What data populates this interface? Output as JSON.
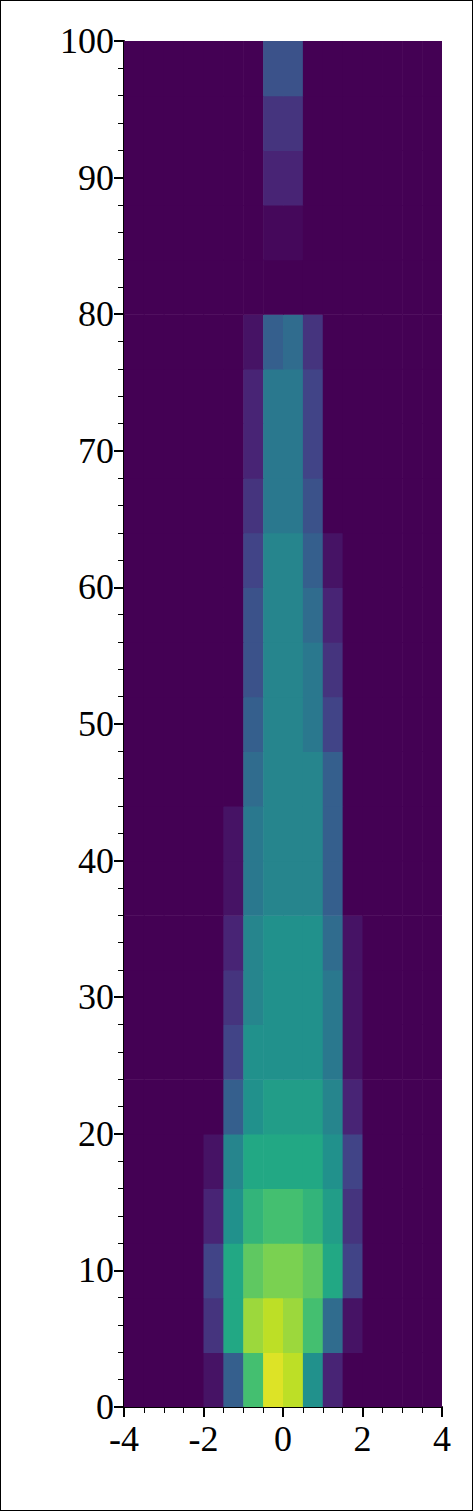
{
  "chart_data": {
    "type": "heatmap",
    "xlim": [
      -4,
      4
    ],
    "xticks": [
      -4,
      -2,
      0,
      2,
      4
    ],
    "ylim": [
      0,
      100
    ],
    "yticks": [
      0,
      10,
      20,
      30,
      40,
      50,
      60,
      70,
      80,
      90,
      100
    ],
    "grid": false,
    "zlim": [
      0,
      1
    ],
    "cells": {
      "x": [
        -3.75,
        -3.25,
        -2.75,
        -2.25,
        -1.75,
        -1.25,
        -0.75,
        -0.25,
        0.25,
        0.75,
        1.25,
        1.75,
        2.25,
        2.75,
        3.25,
        3.75
      ],
      "y": [
        2,
        6,
        10,
        14,
        18,
        22,
        26,
        30,
        34,
        38,
        42,
        46,
        50,
        54,
        58,
        62,
        66,
        70,
        74,
        78,
        82,
        86,
        90,
        94,
        98
      ],
      "values": [
        [
          0,
          0,
          0,
          0,
          0.05,
          0.3,
          0.7,
          0.95,
          0.9,
          0.5,
          0.1,
          0,
          0,
          0,
          0,
          0
        ],
        [
          0,
          0,
          0,
          0,
          0.15,
          0.6,
          0.85,
          0.9,
          0.85,
          0.7,
          0.35,
          0.05,
          0,
          0,
          0,
          0
        ],
        [
          0,
          0,
          0,
          0,
          0.2,
          0.6,
          0.75,
          0.8,
          0.8,
          0.75,
          0.6,
          0.2,
          0,
          0,
          0,
          0
        ],
        [
          0,
          0,
          0,
          0,
          0.1,
          0.5,
          0.65,
          0.7,
          0.7,
          0.65,
          0.55,
          0.15,
          0,
          0,
          0,
          0
        ],
        [
          0,
          0,
          0,
          0,
          0.05,
          0.45,
          0.6,
          0.6,
          0.6,
          0.6,
          0.5,
          0.2,
          0,
          0,
          0,
          0
        ],
        [
          0,
          0,
          0,
          0,
          0,
          0.3,
          0.5,
          0.55,
          0.55,
          0.55,
          0.45,
          0.1,
          0,
          0,
          0,
          0
        ],
        [
          0,
          0,
          0,
          0,
          0,
          0.2,
          0.5,
          0.5,
          0.5,
          0.5,
          0.4,
          0.05,
          0,
          0,
          0,
          0
        ],
        [
          0,
          0,
          0,
          0,
          0,
          0.15,
          0.45,
          0.5,
          0.5,
          0.5,
          0.4,
          0.05,
          0,
          0,
          0,
          0
        ],
        [
          0,
          0,
          0,
          0,
          0,
          0.1,
          0.45,
          0.5,
          0.5,
          0.5,
          0.35,
          0.05,
          0,
          0,
          0,
          0
        ],
        [
          0,
          0,
          0,
          0,
          0,
          0.05,
          0.4,
          0.45,
          0.45,
          0.45,
          0.3,
          0,
          0,
          0,
          0,
          0
        ],
        [
          0,
          0,
          0,
          0,
          0,
          0.05,
          0.4,
          0.45,
          0.45,
          0.45,
          0.3,
          0,
          0,
          0,
          0,
          0
        ],
        [
          0,
          0,
          0,
          0,
          0,
          0,
          0.35,
          0.45,
          0.45,
          0.45,
          0.3,
          0,
          0,
          0,
          0,
          0
        ],
        [
          0,
          0,
          0,
          0,
          0,
          0,
          0.3,
          0.45,
          0.45,
          0.4,
          0.2,
          0,
          0,
          0,
          0,
          0
        ],
        [
          0,
          0,
          0,
          0,
          0,
          0,
          0.25,
          0.45,
          0.45,
          0.4,
          0.15,
          0,
          0,
          0,
          0,
          0
        ],
        [
          0,
          0,
          0,
          0,
          0,
          0,
          0.25,
          0.45,
          0.45,
          0.35,
          0.1,
          0,
          0,
          0,
          0,
          0
        ],
        [
          0,
          0,
          0,
          0,
          0,
          0,
          0.2,
          0.45,
          0.45,
          0.3,
          0.05,
          0,
          0,
          0,
          0,
          0
        ],
        [
          0,
          0,
          0,
          0,
          0,
          0,
          0.15,
          0.4,
          0.4,
          0.25,
          0,
          0,
          0,
          0,
          0,
          0
        ],
        [
          0,
          0,
          0,
          0,
          0,
          0,
          0.1,
          0.4,
          0.4,
          0.2,
          0,
          0,
          0,
          0,
          0,
          0
        ],
        [
          0,
          0,
          0,
          0,
          0,
          0,
          0.1,
          0.4,
          0.4,
          0.2,
          0,
          0,
          0,
          0,
          0,
          0
        ],
        [
          0,
          0,
          0,
          0,
          0,
          0,
          0.05,
          0.3,
          0.35,
          0.15,
          0,
          0,
          0,
          0,
          0,
          0
        ],
        [
          0,
          0,
          0,
          0,
          0,
          0,
          0,
          0,
          0,
          0,
          0,
          0,
          0,
          0,
          0,
          0
        ],
        [
          0,
          0,
          0,
          0,
          0,
          0,
          0,
          0.02,
          0.02,
          0,
          0,
          0,
          0,
          0,
          0,
          0
        ],
        [
          0,
          0,
          0,
          0,
          0,
          0,
          0,
          0.1,
          0.1,
          0,
          0,
          0,
          0,
          0,
          0,
          0
        ],
        [
          0,
          0,
          0,
          0,
          0,
          0,
          0,
          0.15,
          0.15,
          0,
          0,
          0,
          0,
          0,
          0,
          0
        ],
        [
          0,
          0,
          0,
          0,
          0,
          0,
          0,
          0.25,
          0.25,
          0,
          0,
          0,
          0,
          0,
          0,
          0
        ]
      ]
    }
  }
}
